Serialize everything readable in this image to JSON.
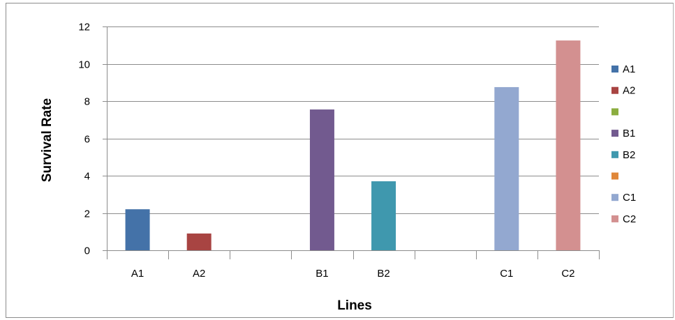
{
  "chart_data": {
    "type": "bar",
    "categories": [
      "A1",
      "A2",
      "",
      "B1",
      "B2",
      "",
      "C1",
      "C2"
    ],
    "values": [
      2.2,
      0.9,
      null,
      7.55,
      3.7,
      null,
      8.75,
      11.25
    ],
    "colors": [
      "#4472a8",
      "#a84442",
      "#8bad3f",
      "#725a8f",
      "#3f98ae",
      "#e0873a",
      "#93a8d0",
      "#d39090"
    ],
    "title": "",
    "xlabel": "Lines",
    "ylabel": "Survival Rate",
    "ylim": [
      0,
      12
    ],
    "yticks": [
      0,
      2,
      4,
      6,
      8,
      10,
      12
    ],
    "grid": true,
    "legend_position": "right",
    "legend": [
      "A1",
      "A2",
      "",
      "B1",
      "B2",
      "",
      "C1",
      "C2"
    ]
  }
}
